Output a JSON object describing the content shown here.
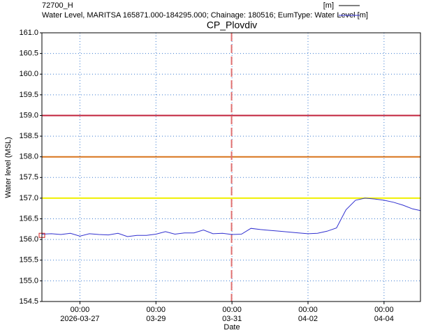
{
  "chart_data": {
    "type": "line",
    "title": "CP_Plovdiv",
    "xlabel": "Date",
    "ylabel": "Water level (MSL)",
    "legend": [
      {
        "name": "72700_H",
        "unit": "[m]",
        "color": "#000000"
      },
      {
        "name": "Water Level, MARITSA 165871.000-184295.000; Chainage: 180516; EumType: Water Level [m]",
        "color": "#3030d0"
      }
    ],
    "xlim": [
      "2026-03-26T00:00",
      "2026-04-04T23:00"
    ],
    "ylim": [
      154.5,
      161.0
    ],
    "yticks": [
      {
        "value": 154.5,
        "label": "154.5"
      },
      {
        "value": 155,
        "label": "155.0"
      },
      {
        "value": 155.5,
        "label": "155.5"
      },
      {
        "value": 156,
        "label": "156.0"
      },
      {
        "value": 156.5,
        "label": "156.5"
      },
      {
        "value": 157,
        "label": "157.0"
      },
      {
        "value": 157.5,
        "label": "157.5"
      },
      {
        "value": 158,
        "label": "158.0"
      },
      {
        "value": 158.5,
        "label": "158.5"
      },
      {
        "value": 159,
        "label": "159.0"
      },
      {
        "value": 159.5,
        "label": "159.5"
      },
      {
        "value": 160,
        "label": "160.0"
      },
      {
        "value": 160.5,
        "label": "160.5"
      },
      {
        "value": 161,
        "label": "161.0"
      }
    ],
    "xticks": [
      {
        "value": "2026-03-27T00:00",
        "label": [
          "00:00",
          "2026-03-27"
        ]
      },
      {
        "value": "2026-03-29T00:00",
        "label": [
          "00:00",
          "03-29"
        ]
      },
      {
        "value": "2026-03-31T00:00",
        "label": [
          "00:00",
          "03-31"
        ]
      },
      {
        "value": "2026-04-02T00:00",
        "label": [
          "00:00",
          "04-02"
        ]
      },
      {
        "value": "2026-04-04T00:00",
        "label": [
          "00:00",
          "04-04"
        ]
      }
    ],
    "grid": true,
    "reference_lines": [
      {
        "value": 159,
        "color": "#c0203a"
      },
      {
        "value": 158,
        "color": "#d8731a"
      },
      {
        "value": 157,
        "color": "#f0f000"
      }
    ],
    "time_marker": {
      "x": "2026-03-30T23:45",
      "color": "#e07070"
    },
    "observations": {
      "x": [
        "2026-03-26T00:00"
      ],
      "values": [
        156.1
      ],
      "color": "#d02020"
    },
    "series": [
      {
        "name": "Water Level",
        "color": "#3030d0",
        "x": [
          "2026-03-26T00:00",
          "2026-03-26T06:00",
          "2026-03-26T12:00",
          "2026-03-26T18:00",
          "2026-03-27T00:00",
          "2026-03-27T06:00",
          "2026-03-27T12:00",
          "2026-03-27T18:00",
          "2026-03-28T00:00",
          "2026-03-28T06:00",
          "2026-03-28T12:00",
          "2026-03-28T18:00",
          "2026-03-29T00:00",
          "2026-03-29T06:00",
          "2026-03-29T12:00",
          "2026-03-29T18:00",
          "2026-03-30T00:00",
          "2026-03-30T06:00",
          "2026-03-30T12:00",
          "2026-03-30T18:00",
          "2026-03-31T00:00",
          "2026-03-31T06:00",
          "2026-03-31T12:00",
          "2026-03-31T18:00",
          "2026-04-01T00:00",
          "2026-04-01T06:00",
          "2026-04-01T12:00",
          "2026-04-01T18:00",
          "2026-04-02T00:00",
          "2026-04-02T06:00",
          "2026-04-02T12:00",
          "2026-04-02T18:00",
          "2026-04-03T00:00",
          "2026-04-03T06:00",
          "2026-04-03T12:00",
          "2026-04-03T18:00",
          "2026-04-04T00:00",
          "2026-04-04T06:00",
          "2026-04-04T12:00",
          "2026-04-04T18:00",
          "2026-04-04T23:00"
        ],
        "values": [
          156.13,
          156.14,
          156.12,
          156.15,
          156.08,
          156.14,
          156.12,
          156.11,
          156.15,
          156.07,
          156.1,
          156.1,
          156.13,
          156.19,
          156.13,
          156.16,
          156.16,
          156.23,
          156.14,
          156.15,
          156.12,
          156.13,
          156.27,
          156.24,
          156.22,
          156.2,
          156.18,
          156.16,
          156.14,
          156.15,
          156.2,
          156.28,
          156.72,
          156.95,
          157.0,
          156.98,
          156.95,
          156.9,
          156.83,
          156.74,
          156.7
        ]
      }
    ]
  }
}
